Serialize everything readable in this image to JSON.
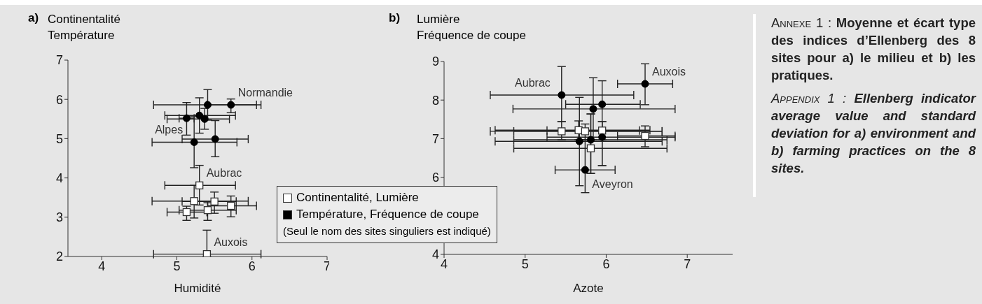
{
  "chart_data": [
    {
      "type": "scatter",
      "title": "a)",
      "ylabel": "Continentalité\nTempérature",
      "xlabel": "Humidité",
      "xlim": [
        3.55,
        7
      ],
      "xticks": [
        4,
        5,
        6,
        7
      ],
      "ylim": [
        2,
        7
      ],
      "yticks": [
        2,
        3,
        4,
        5,
        6,
        7
      ],
      "grid": false,
      "legend": "bottom right",
      "series": [
        {
          "name": "Continentalité, Lumière",
          "color": "#ffffff",
          "marker": "square",
          "x": [
            5.3,
            5.23,
            5.5,
            5.72,
            5.13,
            5.41,
            5.4
          ],
          "values": [
            3.81,
            3.41,
            3.4,
            3.29,
            3.13,
            3.18,
            2.06
          ],
          "xerrors": [
            [
              4.84,
              5.78
            ],
            [
              4.67,
              5.95
            ],
            [
              5.07,
              5.79
            ],
            [
              5.41,
              6.06
            ],
            [
              4.87,
              5.4
            ],
            [
              5.03,
              5.79
            ],
            [
              4.69,
              6.12
            ]
          ],
          "errors": [
            [
              3.31,
              4.32
            ],
            [
              2.98,
              3.81
            ],
            [
              3.1,
              3.64
            ],
            [
              3.01,
              3.54
            ],
            [
              2.92,
              3.28
            ],
            [
              2.92,
              3.37
            ],
            [
              2,
              2.67
            ]
          ]
        },
        {
          "name": "Température, Fréquence de coupe",
          "color": "#000000",
          "marker": "circle",
          "x": [
            5.72,
            5.41,
            5.3,
            5.37,
            5.13,
            5.23,
            5.51
          ],
          "values": [
            5.86,
            5.86,
            5.59,
            5.5,
            5.52,
            4.91,
            4.99
          ],
          "xerrors": [
            [
              5.4,
              6.06
            ],
            [
              4.69,
              6.12
            ],
            [
              4.84,
              5.78
            ],
            [
              4.87,
              5.7
            ],
            [
              5.03,
              5.23
            ],
            [
              4.67,
              5.8
            ],
            [
              5.07,
              5.95
            ]
          ],
          "errors": [
            [
              5.66,
              6.01
            ],
            [
              5.47,
              6.25
            ],
            [
              5.14,
              6.04
            ],
            [
              5.24,
              5.77
            ],
            [
              5.09,
              5.92
            ],
            [
              4.26,
              5.56
            ],
            [
              4.54,
              5.46
            ]
          ]
        }
      ],
      "annotations": [
        {
          "text": "Normandie",
          "x": 5.72,
          "y": 5.86
        },
        {
          "text": "Alpes",
          "x": 5.23,
          "y": 4.91
        },
        {
          "text": "Aubrac",
          "x": 5.3,
          "y": 3.81
        },
        {
          "text": "Auxois",
          "x": 5.4,
          "y": 2.06
        },
        "(Seul le nom des sites singuliers est indiqué)"
      ]
    },
    {
      "type": "scatter",
      "title": "b)",
      "ylabel": "Lumière\nFréquence de coupe",
      "xlabel": "Azote",
      "xlim": [
        4,
        7.56
      ],
      "xticks": [
        4,
        5,
        6,
        7
      ],
      "ylim": [
        4,
        9
      ],
      "yticks": [
        4,
        6,
        7,
        8,
        9
      ],
      "grid": false,
      "series": [
        {
          "color": "#ffffff",
          "marker": "square",
          "x": [
            5.45,
            5.66,
            5.74,
            5.95,
            6.48,
            5.81
          ],
          "values": [
            7.19,
            7.22,
            7.19,
            7.21,
            7.07,
            6.75
          ],
          "xerrors": [
            [
              4.57,
              6.69
            ],
            [
              4.63,
              6.54
            ],
            [
              4.86,
              6.69
            ],
            [
              5.27,
              6.41
            ],
            [
              6.14,
              6.85
            ],
            [
              4.86,
              6.75
            ]
          ],
          "errors": [
            [
              6.97,
              7.44
            ],
            [
              6.97,
              7.46
            ],
            [
              6.97,
              7.38
            ],
            [
              6.97,
              7.44
            ],
            [
              6.79,
              7.33
            ],
            [
              6.1,
              7.64
            ]
          ]
        },
        {
          "color": "#000000",
          "marker": "circle",
          "x": [
            5.45,
            6.48,
            5.95,
            5.84,
            5.67,
            5.81,
            5.95,
            5.74
          ],
          "values": [
            8.13,
            8.42,
            7.89,
            7.77,
            6.93,
            6.97,
            7.04,
            6.19
          ],
          "xerrors": [
            [
              4.57,
              6.34
            ],
            [
              6.14,
              6.82
            ],
            [
              5.5,
              6.42
            ],
            [
              4.85,
              6.85
            ],
            [
              4.63,
              6.69
            ],
            [
              4.86,
              6.75
            ],
            [
              5.27,
              6.85
            ],
            [
              5.37,
              6.11
            ]
          ],
          "errors": [
            [
              7.44,
              8.87
            ],
            [
              7.88,
              8.94
            ],
            [
              6.3,
              8.5
            ],
            [
              6.97,
              8.58
            ],
            [
              5.78,
              8.07
            ],
            [
              6.1,
              7.64
            ],
            [
              6.3,
              7.44
            ],
            [
              5.6,
              6.97
            ]
          ]
        }
      ],
      "annotations": [
        {
          "text": "Aubrac",
          "x": 5.45,
          "y": 8.13
        },
        {
          "text": "Auxois",
          "x": 6.48,
          "y": 8.42
        },
        {
          "text": "Aveyron",
          "x": 5.74,
          "y": 6.19
        }
      ]
    },
    {
      "type": "other",
      "annotations": [
        "Annexe 1 :",
        "Moyenne et écart type des indices d’Ellenberg des 8 sites pour a) le milieu et b) les pratiques.",
        "Appendix 1 :",
        "Ellenberg indicator average value and standard deviation for a) environment and b) farming practices on the 8 sites."
      ]
    }
  ]
}
